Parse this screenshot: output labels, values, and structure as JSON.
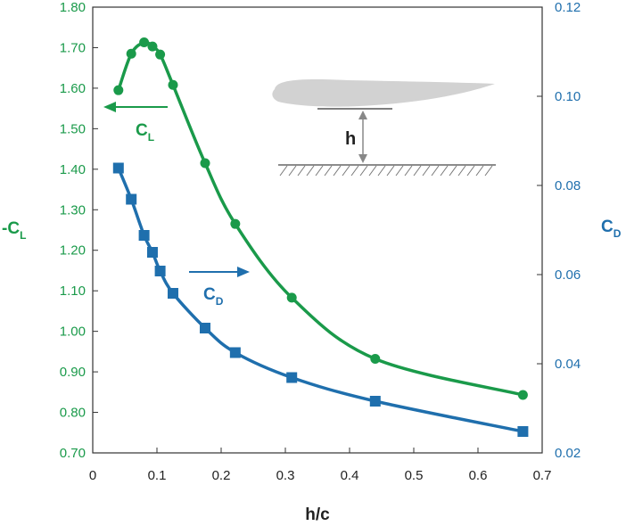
{
  "chart_data": {
    "type": "line",
    "xlabel": "h/c",
    "ylabel_left": {
      "main": "-C",
      "sub": "L"
    },
    "ylabel_right": {
      "main": "C",
      "sub": "D"
    },
    "xlim": [
      0,
      0.7
    ],
    "ylim_left": [
      0.7,
      1.8
    ],
    "ylim_right": [
      0.02,
      0.12
    ],
    "x_ticks": [
      "0",
      "0.1",
      "0.2",
      "0.3",
      "0.4",
      "0.5",
      "0.6",
      "0.7"
    ],
    "left_ticks": [
      "0.70",
      "0.80",
      "0.90",
      "1.00",
      "1.10",
      "1.20",
      "1.30",
      "1.40",
      "1.50",
      "1.60",
      "1.70",
      "1.80"
    ],
    "right_ticks": [
      "0.02",
      "0.04",
      "0.06",
      "0.08",
      "0.10",
      "0.12"
    ],
    "grid": false,
    "series": [
      {
        "name": "C_L",
        "axis": "left",
        "color": "#1a9a4a",
        "marker": "circle",
        "points": [
          [
            0.04,
            1.595
          ],
          [
            0.06,
            1.685
          ],
          [
            0.08,
            1.713
          ],
          [
            0.093,
            1.703
          ],
          [
            0.105,
            1.683
          ],
          [
            0.125,
            1.608
          ],
          [
            0.175,
            1.415
          ],
          [
            0.222,
            1.265
          ],
          [
            0.31,
            1.083
          ],
          [
            0.44,
            0.932
          ],
          [
            0.67,
            0.843
          ]
        ]
      },
      {
        "name": "C_D",
        "axis": "right",
        "color": "#1f6fad",
        "marker": "square",
        "points": [
          [
            0.04,
            0.0839
          ],
          [
            0.06,
            0.0769
          ],
          [
            0.08,
            0.0688
          ],
          [
            0.093,
            0.065
          ],
          [
            0.105,
            0.0608
          ],
          [
            0.125,
            0.0558
          ],
          [
            0.175,
            0.048
          ],
          [
            0.222,
            0.0425
          ],
          [
            0.31,
            0.0369
          ],
          [
            0.44,
            0.0316
          ],
          [
            0.67,
            0.0248
          ]
        ]
      }
    ],
    "annotations": {
      "cl_label": {
        "main": "C",
        "sub": "L"
      },
      "cd_label": {
        "main": "C",
        "sub": "D"
      },
      "inset_label": "h"
    },
    "colors": {
      "cl": "#1a9a4a",
      "cd": "#1f6fad",
      "foil": "#d2d2d2",
      "ground": "#666666"
    }
  }
}
